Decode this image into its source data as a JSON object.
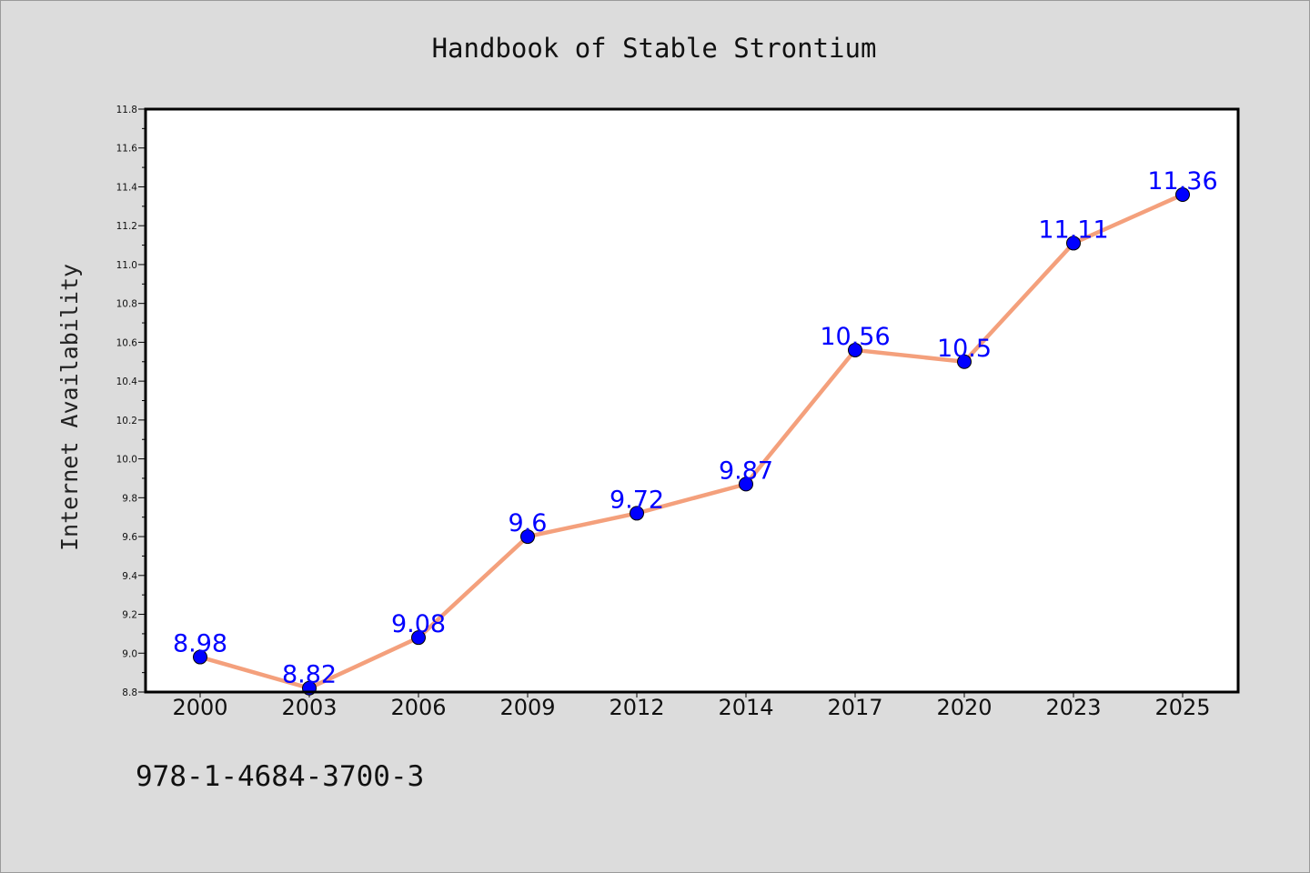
{
  "chart_data": {
    "type": "line",
    "title": "Handbook of Stable Strontium",
    "xlabel": "",
    "ylabel": "Internet Availability",
    "categories": [
      "2000",
      "2003",
      "2006",
      "2009",
      "2012",
      "2014",
      "2017",
      "2020",
      "2023",
      "2025"
    ],
    "series": [
      {
        "values": [
          8.98,
          8.82,
          9.08,
          9.6,
          9.72,
          9.87,
          10.56,
          10.5,
          11.11,
          11.36
        ],
        "data_labels": [
          "8.98",
          "8.82",
          "9.08",
          "9.6",
          "9.72",
          "9.87",
          "10.56",
          "10.5",
          "11.11",
          "11.36"
        ],
        "line_color": "#f4a07c",
        "marker_color": "#0000ff"
      }
    ],
    "ylim": [
      8.8,
      11.8
    ],
    "yticks": [
      "8.8",
      "9.0",
      "9.2",
      "9.4",
      "9.6",
      "9.8",
      "10.0",
      "10.2",
      "10.4",
      "10.6",
      "10.8",
      "11.0",
      "11.2",
      "11.4",
      "11.6",
      "11.8"
    ],
    "grid": false,
    "legend": "none",
    "label_color": "#0000ff",
    "background": "#dcdcdc",
    "plot_background": "#ffffff"
  },
  "footer": {
    "isbn": "978-1-4684-3700-3"
  }
}
